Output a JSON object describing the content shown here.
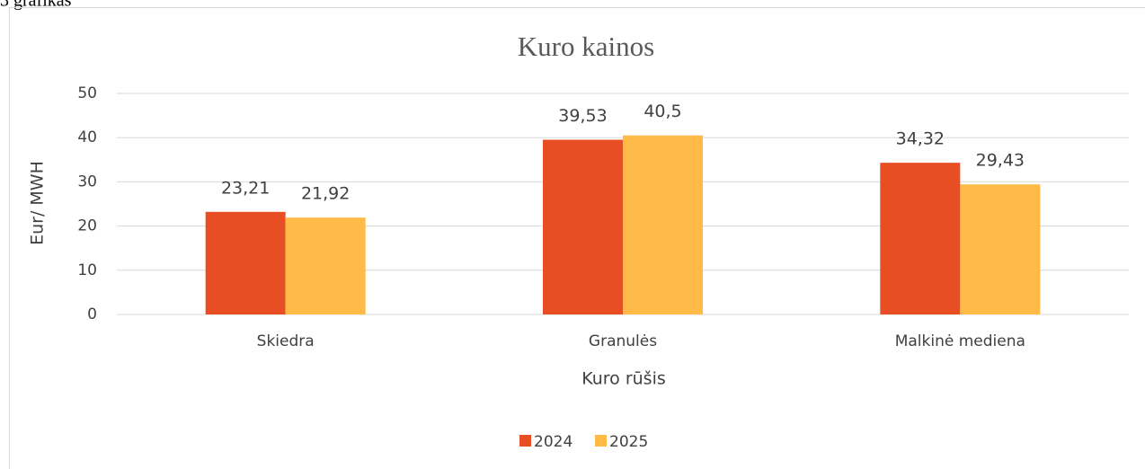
{
  "caption": "3 grafikas",
  "chart_data": {
    "type": "bar",
    "title": "Kuro kainos",
    "x_label": "Kuro rūšis",
    "y_label": "Eur/ MWH",
    "categories": [
      "Skiedra",
      "Granulės",
      "Malkinė mediena"
    ],
    "series": [
      {
        "name": "2024",
        "color": "#e84e24",
        "values": [
          23.21,
          39.53,
          34.32
        ],
        "value_labels": [
          "23,21",
          "39,53",
          "34,32"
        ]
      },
      {
        "name": "2025",
        "color": "#ffba47",
        "values": [
          21.92,
          40.5,
          29.43
        ],
        "value_labels": [
          "21,92",
          "40,5",
          "29,43"
        ]
      }
    ],
    "ylim": [
      0,
      50
    ],
    "yticks": [
      0,
      10,
      20,
      30,
      40,
      50
    ],
    "grid": true,
    "legend": "bottom"
  }
}
